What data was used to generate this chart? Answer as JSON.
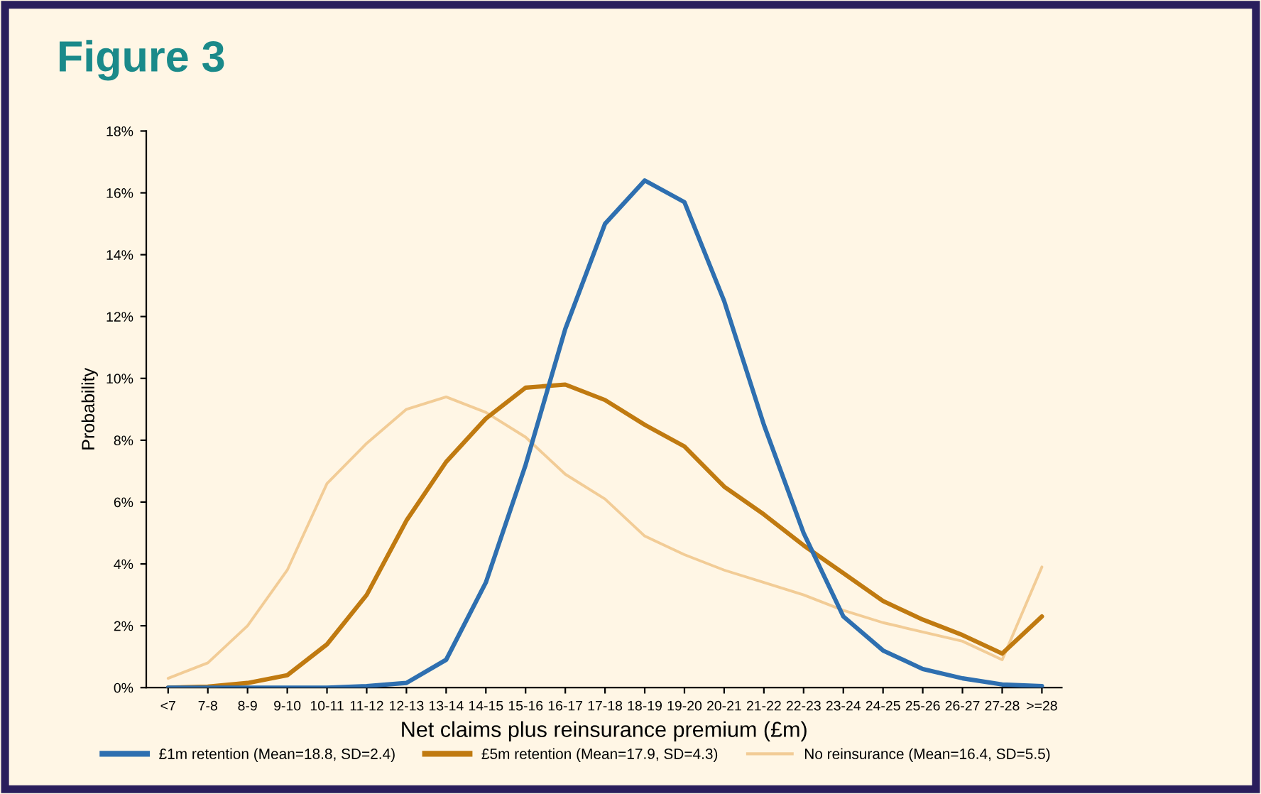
{
  "chart_data": {
    "type": "line",
    "title": "Figure 3",
    "xlabel": "Net claims plus reinsurance premium (£m)",
    "ylabel": "Probability",
    "categories": [
      "<7",
      "7-8",
      "8-9",
      "9-10",
      "10-11",
      "11-12",
      "12-13",
      "13-14",
      "14-15",
      "15-16",
      "16-17",
      "17-18",
      "18-19",
      "19-20",
      "20-21",
      "21-22",
      "22-23",
      "23-24",
      "24-25",
      "25-26",
      "26-27",
      "27-28",
      ">=28"
    ],
    "series": [
      {
        "name": "£1m retention (Mean=18.8, SD=2.4)",
        "color": "#2e6fb0",
        "values": [
          0,
          0,
          0,
          0,
          0,
          0.05,
          0.15,
          0.9,
          3.4,
          7.2,
          11.6,
          15.0,
          16.4,
          15.7,
          12.5,
          8.5,
          5.0,
          2.3,
          1.2,
          0.6,
          0.3,
          0.1,
          0.05
        ]
      },
      {
        "name": "£5m retention (Mean=17.9, SD=4.3)",
        "color": "#c07a10",
        "values": [
          0,
          0.03,
          0.15,
          0.4,
          1.4,
          3.0,
          5.4,
          7.3,
          8.7,
          9.7,
          9.8,
          9.3,
          8.5,
          7.8,
          6.5,
          5.6,
          4.6,
          3.7,
          2.8,
          2.2,
          1.7,
          1.1,
          2.3
        ]
      },
      {
        "name": "No reinsurance (Mean=16.4, SD=5.5)",
        "color": "#f2cc96",
        "values": [
          0.3,
          0.8,
          2.0,
          3.8,
          6.6,
          7.9,
          9.0,
          9.4,
          8.9,
          8.1,
          6.9,
          6.1,
          4.9,
          4.3,
          3.8,
          3.4,
          3.0,
          2.5,
          2.1,
          1.8,
          1.5,
          0.9,
          3.9
        ]
      }
    ],
    "ylim": [
      0,
      18
    ],
    "yticks": [
      {
        "value": 0,
        "label": "0%"
      },
      {
        "value": 2,
        "label": "2%"
      },
      {
        "value": 4,
        "label": "4%"
      },
      {
        "value": 6,
        "label": "6%"
      },
      {
        "value": 8,
        "label": "8%"
      },
      {
        "value": 10,
        "label": "10%"
      },
      {
        "value": 12,
        "label": "12%"
      },
      {
        "value": 14,
        "label": "14%"
      },
      {
        "value": 16,
        "label": "16%"
      },
      {
        "value": 18,
        "label": "18%"
      }
    ],
    "grid": false,
    "legend": "bottom",
    "marker": "none",
    "line_style": "solid"
  }
}
